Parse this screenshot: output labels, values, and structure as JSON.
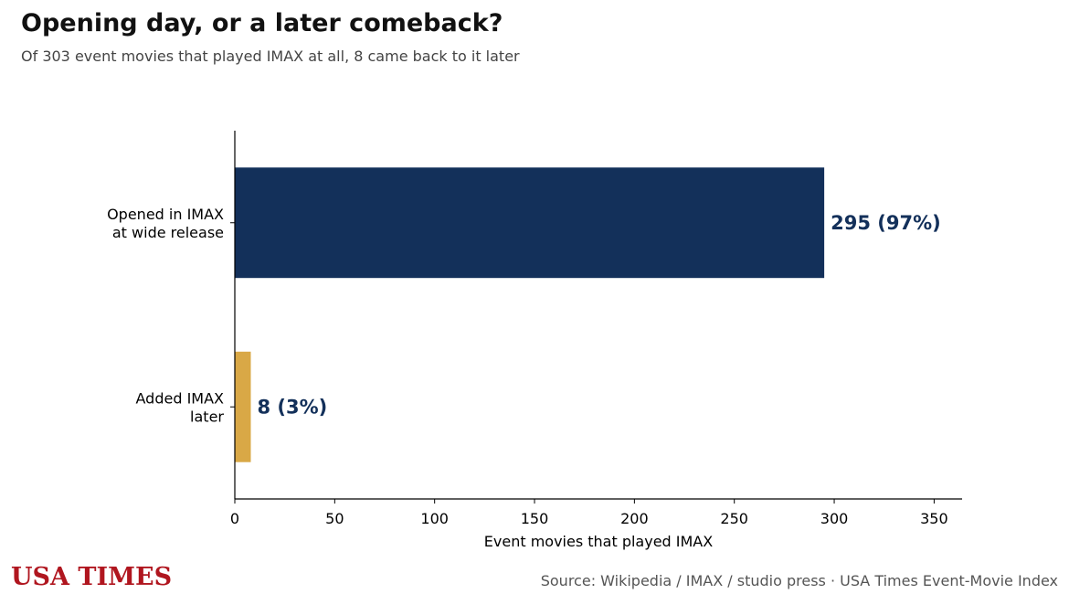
{
  "header": {
    "title": "Opening day, or a later comeback?",
    "subtitle": "Of 303 event movies that played IMAX at all, 8 came back to it later"
  },
  "chart_data": {
    "type": "bar",
    "orientation": "horizontal",
    "categories": [
      [
        "Opened in IMAX",
        "at wide release"
      ],
      [
        "Added IMAX",
        "later"
      ]
    ],
    "values": [
      295,
      8
    ],
    "value_labels": [
      "295  (97%)",
      "8  (3%)"
    ],
    "colors": [
      "#13305a",
      "#d9a846"
    ],
    "xlabel": "Event movies that played IMAX",
    "ylabel": "",
    "xlim": [
      0,
      364
    ],
    "xticks": [
      0,
      50,
      100,
      150,
      200,
      250,
      300,
      350
    ],
    "grid": false,
    "label_color": "#13305a"
  },
  "footer": {
    "brand": "USA TIMES",
    "brand_color": "#b0161f",
    "source": "Source: Wikipedia / IMAX / studio press · USA Times Event-Movie Index"
  }
}
